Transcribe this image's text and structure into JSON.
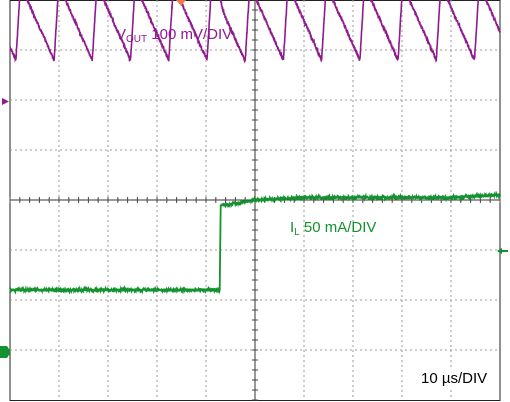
{
  "chart_data": {
    "type": "line",
    "title": "",
    "grid": true,
    "divisions": {
      "x": 10,
      "y": 8
    },
    "timebase_label": {
      "value": "10 µs/DIV"
    },
    "series": [
      {
        "name_main": "V",
        "name_sub": "OUT",
        "scale": "100 mV/DIV",
        "color": "#8e1a8e",
        "waveform": "sawtooth ripple, period ≈0.78 div, load step transient at 4.2 div",
        "x_div": [
          0.0,
          1.0,
          2.0,
          3.0,
          4.0,
          4.2,
          4.3,
          4.4,
          5.0,
          6.0,
          7.0,
          8.0,
          9.0,
          10.0
        ],
        "peak_div": [
          4.3,
          4.3,
          4.3,
          4.3,
          4.3,
          4.3,
          4.6,
          4.3,
          4.3,
          4.3,
          4.3,
          4.3,
          4.3,
          4.3
        ],
        "trough_div": [
          2.8,
          2.8,
          2.8,
          2.8,
          2.8,
          2.8,
          2.3,
          2.75,
          2.8,
          2.8,
          2.8,
          2.8,
          2.8,
          2.8
        ]
      },
      {
        "name_main": "I",
        "name_sub": "L",
        "scale": "50 mA/DIV",
        "color": "#13922f",
        "waveform": "load current step",
        "x_div": [
          0.0,
          4.28,
          4.3,
          4.4,
          5.0,
          6.0,
          7.0,
          8.0,
          9.0,
          10.0
        ],
        "y_div": [
          -1.8,
          -1.8,
          -0.1,
          -0.1,
          0.0,
          0.05,
          0.05,
          0.05,
          0.05,
          0.1
        ]
      }
    ],
    "markers": {
      "trigger_color": "#f07850",
      "ch1_color": "#8e1a8e",
      "ch2_color": "#13922f"
    }
  }
}
